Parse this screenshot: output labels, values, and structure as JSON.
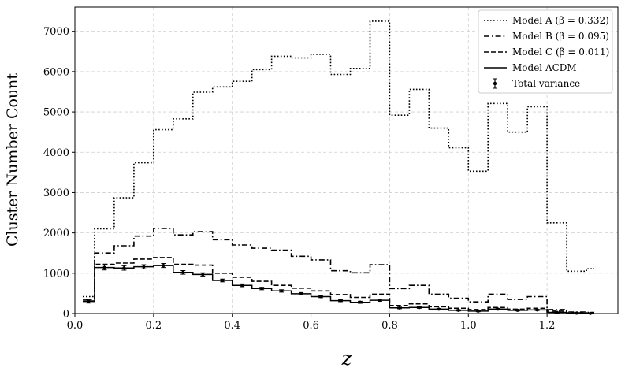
{
  "chart_data": {
    "type": "line",
    "step": true,
    "xlabel": "z",
    "ylabel": "Cluster Number Count",
    "xlim": [
      0.0,
      1.38
    ],
    "ylim": [
      0,
      7600
    ],
    "xticks": [
      0.0,
      0.2,
      0.4,
      0.6,
      0.8,
      1.0,
      1.2
    ],
    "xtick_labels": [
      "0.0",
      "0.2",
      "0.4",
      "0.6",
      "0.8",
      "1.0",
      "1.2"
    ],
    "yticks": [
      0,
      1000,
      2000,
      3000,
      4000,
      5000,
      6000,
      7000
    ],
    "ytick_labels": [
      "0",
      "1000",
      "2000",
      "3000",
      "4000",
      "5000",
      "6000",
      "7000"
    ],
    "grid": true,
    "legend_position": "top-right",
    "bin_edges": [
      0.02,
      0.05,
      0.1,
      0.15,
      0.2,
      0.25,
      0.3,
      0.35,
      0.4,
      0.45,
      0.5,
      0.55,
      0.6,
      0.65,
      0.7,
      0.75,
      0.8,
      0.85,
      0.9,
      0.95,
      1.0,
      1.05,
      1.1,
      1.15,
      1.2,
      1.25,
      1.3,
      1.32
    ],
    "series": [
      {
        "name": "Model A (β = 0.332)",
        "dash": "dotted",
        "values": [
          420,
          2100,
          2870,
          3740,
          4560,
          4830,
          5490,
          5620,
          5760,
          6050,
          6380,
          6340,
          6430,
          5930,
          6080,
          7250,
          4920,
          5560,
          4600,
          4110,
          3530,
          5210,
          4500,
          5130,
          2250,
          1050,
          1110
        ]
      },
      {
        "name": "Model B (β = 0.095)",
        "dash": "dashdot",
        "values": [
          350,
          1500,
          1680,
          1920,
          2110,
          1950,
          2030,
          1830,
          1700,
          1620,
          1570,
          1420,
          1330,
          1060,
          1010,
          1210,
          620,
          700,
          480,
          380,
          290,
          480,
          350,
          420,
          100,
          40,
          30
        ]
      },
      {
        "name": "Model C (β = 0.011)",
        "dash": "dashed",
        "values": [
          310,
          1220,
          1250,
          1350,
          1390,
          1220,
          1200,
          1000,
          900,
          800,
          700,
          630,
          560,
          470,
          400,
          480,
          200,
          240,
          170,
          130,
          100,
          150,
          110,
          130,
          60,
          20,
          10
        ]
      },
      {
        "name": "Model ΛCDM",
        "dash": "solid",
        "values": [
          300,
          1140,
          1130,
          1160,
          1190,
          1020,
          970,
          820,
          700,
          620,
          560,
          490,
          420,
          320,
          280,
          330,
          140,
          150,
          110,
          80,
          60,
          110,
          80,
          90,
          30,
          10,
          5
        ]
      }
    ],
    "variance": {
      "name": "Total variance",
      "x": [
        0.035,
        0.075,
        0.125,
        0.175,
        0.225,
        0.275,
        0.325,
        0.375,
        0.425,
        0.475,
        0.525,
        0.575,
        0.625,
        0.675,
        0.725,
        0.775,
        0.825,
        0.875,
        0.925,
        0.975,
        1.025,
        1.075,
        1.125,
        1.175,
        1.225,
        1.275,
        1.31
      ],
      "y": [
        300,
        1140,
        1130,
        1160,
        1190,
        1020,
        970,
        820,
        700,
        620,
        560,
        490,
        420,
        320,
        280,
        330,
        140,
        150,
        110,
        80,
        60,
        110,
        80,
        90,
        30,
        10,
        5
      ],
      "err": [
        40,
        60,
        55,
        50,
        50,
        45,
        40,
        35,
        35,
        30,
        30,
        30,
        25,
        25,
        25,
        25,
        20,
        20,
        15,
        15,
        15,
        15,
        15,
        15,
        10,
        5,
        5
      ]
    }
  }
}
